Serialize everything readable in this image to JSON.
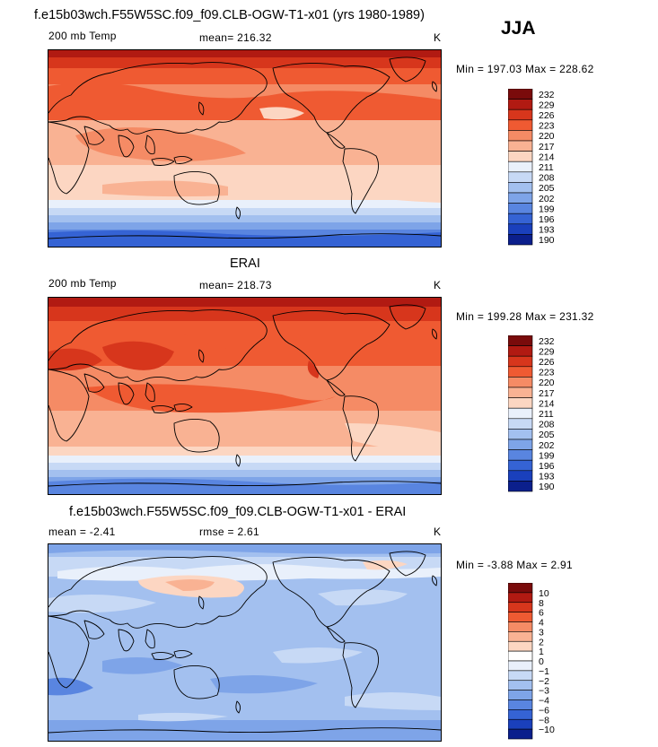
{
  "season": "JJA",
  "chart_data": [
    {
      "type": "heatmap",
      "title": "f.e15b03wch.F55W5SC.f09_f09.CLB-OGW-T1-x01 (yrs 1980-1989)",
      "variable": "200 mb Temp",
      "mean_text": "mean= 216.32",
      "units": "K",
      "minmax_text": "Min = 197.03 Max = 228.62",
      "min": 197.03,
      "max": 228.62,
      "levels": [
        "232",
        "229",
        "226",
        "223",
        "220",
        "217",
        "214",
        "211",
        "208",
        "205",
        "202",
        "199",
        "196",
        "193",
        "190"
      ],
      "colors": [
        "#7a0b0b",
        "#b11a12",
        "#d7361c",
        "#ef5a32",
        "#f58b65",
        "#f9b293",
        "#fcd6c2",
        "#e9f0fb",
        "#c7d9f5",
        "#a3c0ef",
        "#7ea4e8",
        "#5985e0",
        "#3563d4",
        "#1a40bc",
        "#0b1f8c"
      ]
    },
    {
      "type": "heatmap",
      "title": "ERAI",
      "variable": "200 mb Temp",
      "mean_text": "mean= 218.73",
      "units": "K",
      "minmax_text": "Min = 199.28 Max = 231.32",
      "min": 199.28,
      "max": 231.32,
      "levels": [
        "232",
        "229",
        "226",
        "223",
        "220",
        "217",
        "214",
        "211",
        "208",
        "205",
        "202",
        "199",
        "196",
        "193",
        "190"
      ],
      "colors": [
        "#7a0b0b",
        "#b11a12",
        "#d7361c",
        "#ef5a32",
        "#f58b65",
        "#f9b293",
        "#fcd6c2",
        "#e9f0fb",
        "#c7d9f5",
        "#a3c0ef",
        "#7ea4e8",
        "#5985e0",
        "#3563d4",
        "#1a40bc",
        "#0b1f8c"
      ]
    },
    {
      "type": "heatmap",
      "title": "f.e15b03wch.F55W5SC.f09_f09.CLB-OGW-T1-x01 - ERAI",
      "mean_text": "mean =   -2.41",
      "rmse_text": "rmse =    2.61",
      "units": "K",
      "minmax_text": "Min =   -3.88 Max =    2.91",
      "min": -3.88,
      "max": 2.91,
      "levels": [
        "10",
        "8",
        "6",
        "4",
        "3",
        "2",
        "1",
        "0",
        "−1",
        "−2",
        "−3",
        "−4",
        "−6",
        "−8",
        "−10"
      ],
      "colors": [
        "#7a0b0b",
        "#b11a12",
        "#d7361c",
        "#ef5a32",
        "#f58b65",
        "#f9b293",
        "#fcd6c2",
        "#ffffff",
        "#e9f0fb",
        "#c7d9f5",
        "#a3c0ef",
        "#7ea4e8",
        "#5985e0",
        "#3563d4",
        "#1a40bc",
        "#0b1f8c"
      ]
    }
  ]
}
